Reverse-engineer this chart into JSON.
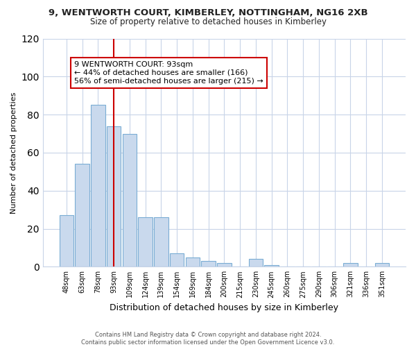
{
  "title1": "9, WENTWORTH COURT, KIMBERLEY, NOTTINGHAM, NG16 2XB",
  "title2": "Size of property relative to detached houses in Kimberley",
  "xlabel": "Distribution of detached houses by size in Kimberley",
  "ylabel": "Number of detached properties",
  "bar_labels": [
    "48sqm",
    "63sqm",
    "78sqm",
    "93sqm",
    "109sqm",
    "124sqm",
    "139sqm",
    "154sqm",
    "169sqm",
    "184sqm",
    "200sqm",
    "215sqm",
    "230sqm",
    "245sqm",
    "260sqm",
    "275sqm",
    "290sqm",
    "306sqm",
    "321sqm",
    "336sqm",
    "351sqm"
  ],
  "bar_values": [
    27,
    54,
    85,
    74,
    70,
    26,
    26,
    7,
    5,
    3,
    2,
    0,
    4,
    1,
    0,
    0,
    0,
    0,
    2,
    0,
    2
  ],
  "bar_color": "#c9d9ed",
  "bar_edge_color": "#7aadd4",
  "vline_x_idx": 3,
  "vline_color": "#cc0000",
  "annotation_line1": "9 WENTWORTH COURT: 93sqm",
  "annotation_line2": "← 44% of detached houses are smaller (166)",
  "annotation_line3": "56% of semi-detached houses are larger (215) →",
  "box_edge_color": "#cc0000",
  "ylim": [
    0,
    120
  ],
  "yticks": [
    0,
    20,
    40,
    60,
    80,
    100,
    120
  ],
  "footnote_line1": "Contains HM Land Registry data © Crown copyright and database right 2024.",
  "footnote_line2": "Contains public sector information licensed under the Open Government Licence v3.0.",
  "bg_color": "#ffffff",
  "grid_color": "#c8d4e8",
  "title1_fontsize": 9.5,
  "title2_fontsize": 8.5,
  "ylabel_fontsize": 8,
  "xlabel_fontsize": 9,
  "tick_fontsize": 7,
  "annotation_fontsize": 8,
  "footnote_fontsize": 6
}
